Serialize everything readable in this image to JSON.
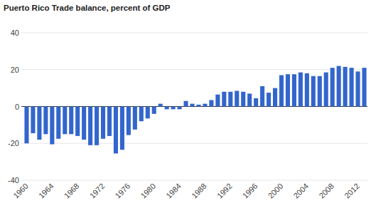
{
  "chart_data": {
    "type": "bar",
    "title": "Puerto Rico Trade balance, percent of GDP",
    "categories": [
      "1960",
      null,
      null,
      null,
      "1964",
      null,
      null,
      null,
      "1968",
      null,
      null,
      null,
      "1972",
      null,
      null,
      null,
      "1976",
      null,
      null,
      null,
      "1980",
      null,
      null,
      null,
      "1984",
      null,
      null,
      null,
      "1988",
      null,
      null,
      null,
      "1992",
      null,
      null,
      null,
      "1996",
      null,
      null,
      null,
      "2000",
      null,
      null,
      null,
      "2004",
      null,
      null,
      null,
      "2008",
      null,
      null,
      null,
      "2012",
      null
    ],
    "values": [
      -20,
      -14.5,
      -18,
      -15,
      -20.5,
      -17.5,
      -15,
      -15,
      -16,
      -18,
      -21,
      -21,
      -17.5,
      -16,
      -25.5,
      -23.5,
      -15.5,
      -12.5,
      -8,
      -6.5,
      -4,
      1.5,
      -1.5,
      -1.5,
      -1.5,
      3,
      1.5,
      1,
      1.5,
      3.5,
      6.5,
      8,
      8,
      8.5,
      8,
      7,
      4.5,
      11,
      7.5,
      10,
      17,
      17.5,
      17.5,
      18.5,
      18,
      16.5,
      16.5,
      18.5,
      21,
      22,
      21.5,
      21,
      19,
      21
    ],
    "color": "#3366cc",
    "ylim": [
      -40,
      40
    ],
    "yticks": [
      -40,
      -20,
      0,
      20,
      40
    ],
    "grid": true
  }
}
